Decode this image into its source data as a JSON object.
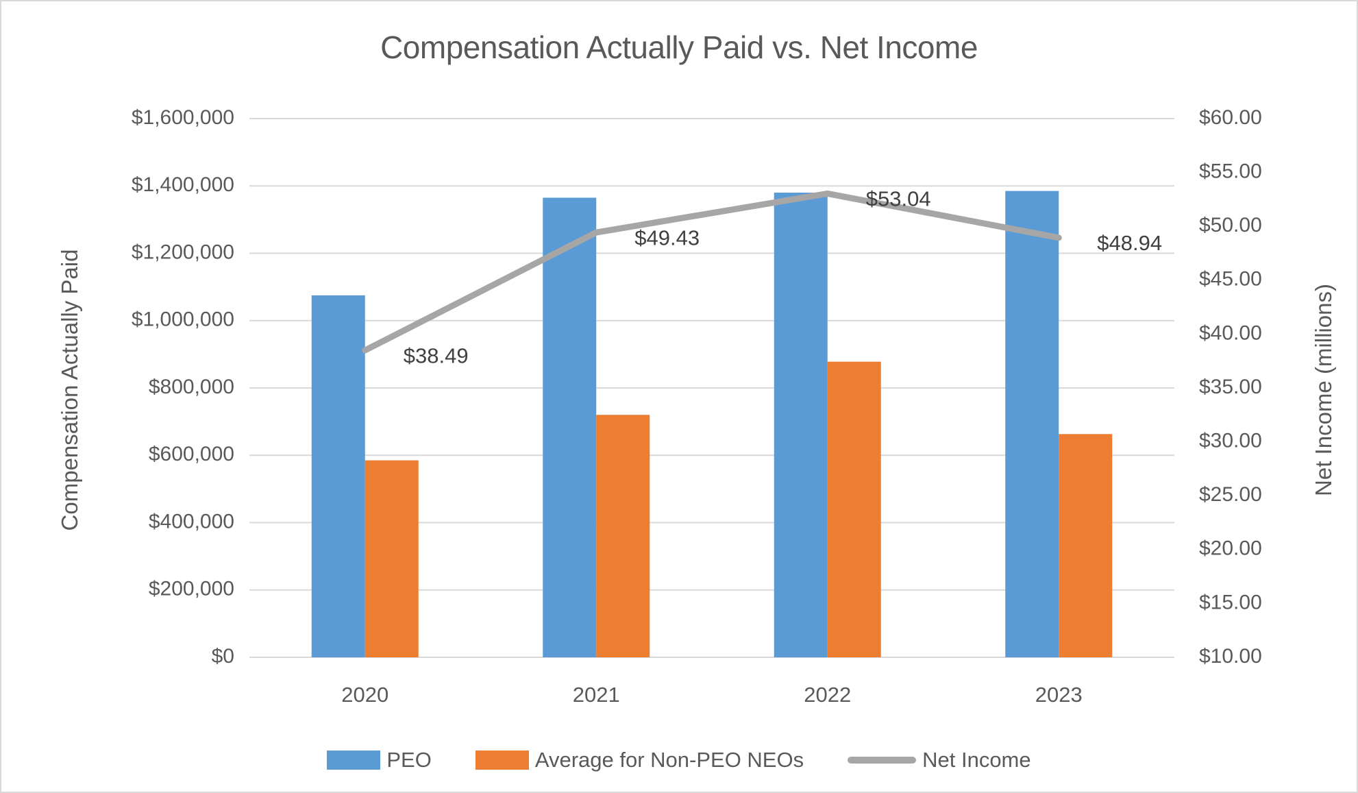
{
  "window": {
    "background": "#ffffff",
    "border_color": "#d9d9d9"
  },
  "chart_data": {
    "type": "combo",
    "title": "Compensation Actually Paid vs. Net Income",
    "categories": [
      "2020",
      "2021",
      "2022",
      "2023"
    ],
    "series": [
      {
        "name": "PEO",
        "type": "bar",
        "axis": "left",
        "color": "#5B9BD5",
        "values": [
          1075000,
          1365000,
          1380000,
          1385000
        ]
      },
      {
        "name": "Average for Non-PEO NEOs",
        "type": "bar",
        "axis": "left",
        "color": "#ED7D31",
        "values": [
          585000,
          720000,
          878000,
          663000
        ]
      },
      {
        "name": "Net Income",
        "type": "line",
        "axis": "right",
        "color": "#A6A6A6",
        "values": [
          38.49,
          49.43,
          53.04,
          48.94
        ],
        "data_labels": [
          "$38.49",
          "$49.43",
          "$53.04",
          "$48.94"
        ]
      }
    ],
    "left_axis": {
      "title": "Compensation Actually Paid",
      "min": 0,
      "max": 1600000,
      "step": 200000,
      "ticks": [
        "$0",
        "$200,000",
        "$400,000",
        "$600,000",
        "$800,000",
        "$1,000,000",
        "$1,200,000",
        "$1,400,000",
        "$1,600,000"
      ]
    },
    "right_axis": {
      "title": "Net Income (millions)",
      "min": 10,
      "max": 60,
      "step": 5,
      "ticks": [
        "$10.00",
        "$15.00",
        "$20.00",
        "$25.00",
        "$30.00",
        "$35.00",
        "$40.00",
        "$45.00",
        "$50.00",
        "$55.00",
        "$60.00"
      ]
    },
    "grid": true,
    "legend_position": "bottom",
    "styles": {
      "gridline_color": "#D9D9D9",
      "tick_label_color": "#595959",
      "data_label_color": "#404040",
      "title_color": "#595959"
    }
  }
}
